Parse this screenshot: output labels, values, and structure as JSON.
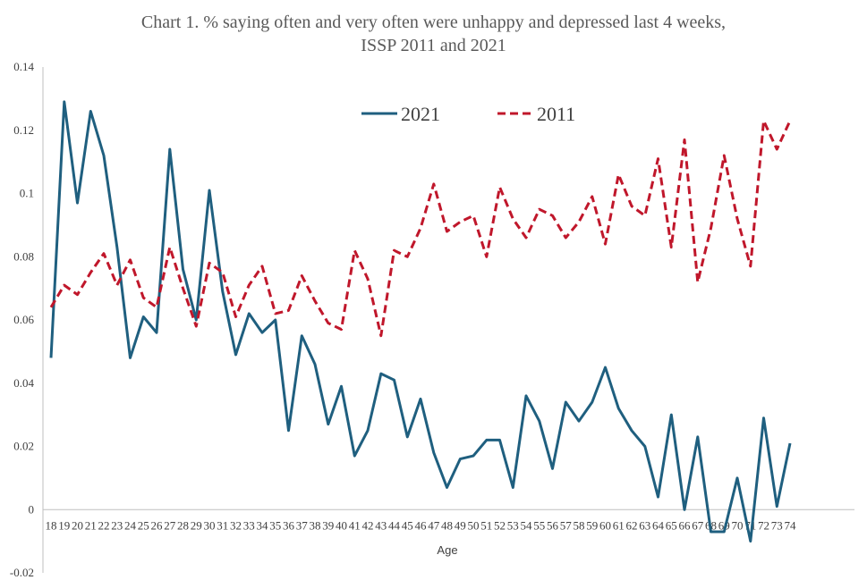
{
  "chart_data": {
    "type": "line",
    "title": "Chart 1.  % saying often and very often were unhappy and depressed last 4 weeks,",
    "subtitle": "ISSP 2011 and 2021",
    "xlabel": "Age",
    "ylabel": "",
    "ylim": [
      -0.02,
      0.14
    ],
    "yticks": [
      -0.02,
      0,
      0.02,
      0.04,
      0.06,
      0.08,
      0.1,
      0.12,
      0.14
    ],
    "ytick_labels": [
      "-0.02",
      "0",
      "0.02",
      "0.04",
      "0.06",
      "0.08",
      "0.1",
      "0.12",
      "0.14"
    ],
    "x": [
      18,
      19,
      20,
      21,
      22,
      23,
      24,
      25,
      26,
      27,
      28,
      29,
      30,
      31,
      32,
      33,
      34,
      35,
      36,
      37,
      38,
      39,
      40,
      41,
      42,
      43,
      44,
      45,
      46,
      47,
      48,
      49,
      50,
      51,
      52,
      53,
      54,
      55,
      56,
      57,
      58,
      59,
      60,
      61,
      62,
      63,
      64,
      65,
      66,
      67,
      68,
      69,
      70,
      71,
      72,
      73,
      74
    ],
    "legend_position": "top-center",
    "grid": false,
    "series": [
      {
        "name": "2021",
        "color": "#1f5f7f",
        "style": "solid",
        "values": [
          0.048,
          0.129,
          0.097,
          0.126,
          0.112,
          0.083,
          0.048,
          0.061,
          0.056,
          0.114,
          0.076,
          0.06,
          0.101,
          0.069,
          0.049,
          0.062,
          0.056,
          0.06,
          0.025,
          0.055,
          0.046,
          0.027,
          0.039,
          0.017,
          0.025,
          0.043,
          0.041,
          0.023,
          0.035,
          0.018,
          0.007,
          0.016,
          0.017,
          0.022,
          0.022,
          0.007,
          0.036,
          0.028,
          0.013,
          0.034,
          0.028,
          0.034,
          0.045,
          0.032,
          0.025,
          0.02,
          0.004,
          0.03,
          0.0,
          0.023,
          -0.007,
          -0.007,
          0.01,
          -0.01,
          0.029,
          0.001,
          0.021
        ]
      },
      {
        "name": "2011",
        "color": "#c0172b",
        "style": "dashed",
        "values": [
          0.064,
          0.071,
          0.068,
          0.075,
          0.081,
          0.071,
          0.079,
          0.067,
          0.064,
          0.083,
          0.07,
          0.058,
          0.078,
          0.075,
          0.061,
          0.071,
          0.077,
          0.062,
          0.063,
          0.074,
          0.066,
          0.059,
          0.057,
          0.082,
          0.073,
          0.055,
          0.082,
          0.08,
          0.089,
          0.103,
          0.088,
          0.091,
          0.093,
          0.08,
          0.102,
          0.092,
          0.086,
          0.095,
          0.093,
          0.086,
          0.091,
          0.099,
          0.084,
          0.106,
          0.096,
          0.093,
          0.111,
          0.083,
          0.117,
          0.072,
          0.089,
          0.112,
          0.092,
          0.077,
          0.123,
          0.114,
          0.123
        ]
      }
    ]
  }
}
